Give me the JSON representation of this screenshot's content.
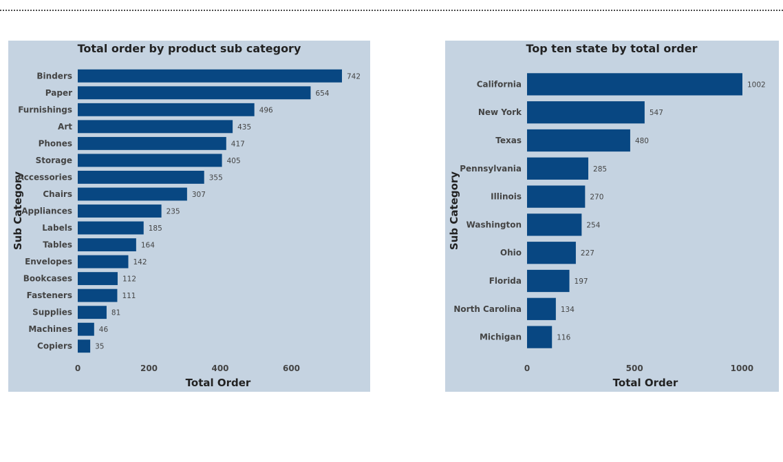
{
  "chart_data": [
    {
      "type": "bar",
      "orientation": "horizontal",
      "title": "Total order by product sub category",
      "xlabel": "Total Order",
      "ylabel": "Sub Category",
      "xlim": [
        0,
        742
      ],
      "xticks": [
        0,
        200,
        400,
        600
      ],
      "grid": false,
      "categories": [
        "Binders",
        "Paper",
        "Furnishings",
        "Art",
        "Phones",
        "Storage",
        "Accessories",
        "Chairs",
        "Appliances",
        "Labels",
        "Tables",
        "Envelopes",
        "Bookcases",
        "Fasteners",
        "Supplies",
        "Machines",
        "Copiers"
      ],
      "values": [
        742,
        654,
        496,
        435,
        417,
        405,
        355,
        307,
        235,
        185,
        164,
        142,
        112,
        111,
        81,
        46,
        35
      ],
      "color": "#084782",
      "background": "#c5d3e1"
    },
    {
      "type": "bar",
      "orientation": "horizontal",
      "title": "Top ten state by total order",
      "xlabel": "Total Order",
      "ylabel": "Sub Category",
      "xlim": [
        0,
        1002
      ],
      "xticks": [
        0,
        500,
        1000
      ],
      "grid": false,
      "categories": [
        "California",
        "New York",
        "Texas",
        "Pennsylvania",
        "Illinois",
        "Washington",
        "Ohio",
        "Florida",
        "North Carolina",
        "Michigan"
      ],
      "values": [
        1002,
        547,
        480,
        285,
        270,
        254,
        227,
        197,
        134,
        116
      ],
      "color": "#084782",
      "background": "#c5d3e1"
    }
  ]
}
